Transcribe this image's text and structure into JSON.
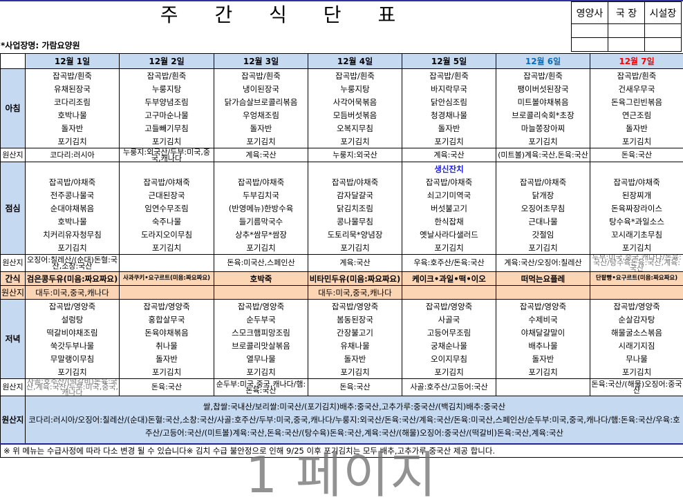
{
  "title": "주 간 식 단 표",
  "approval": {
    "headers": [
      "영양사",
      "국 장",
      "시설장"
    ]
  },
  "business_name": "*사업장명: 가람요양원",
  "labels": {
    "breakfast": "아침",
    "lunch": "점심",
    "snack": "간식",
    "dinner": "저녁",
    "origin": "원산지",
    "all_origin": "원산지"
  },
  "colors": {
    "header_bg": "#c5d9f1",
    "snack_bg": "#fcd5b4",
    "saturday": "#0070c0",
    "sunday": "#ff0000",
    "special": "#1a1aff"
  },
  "days": [
    {
      "date": "12월 1일",
      "color": "#000000",
      "breakfast": [
        "잡곡밥/흰죽",
        "유채된장국",
        "코다리조림",
        "호박나물",
        "돌자반",
        "포기김치"
      ],
      "breakfast_origin": "코다리:러시아",
      "lunch_special": "",
      "lunch": [
        "잡곡밥/야채죽",
        "전주콩나물국",
        "순대야채볶음",
        "호박나물",
        "치커리유자청무침",
        "포기김치"
      ],
      "lunch_origin": "오징어:칠레산/(순대)돈혈:국산,소창:국산",
      "snack": "검은콩두유(미음:짜요짜요)",
      "snack_origin": "대두:미국,중국,캐나다",
      "dinner": [
        "잡곡밥/영양죽",
        "설렁탕",
        "떡갈비야채조림",
        "쑥갓두부나물",
        "무말랭이무침",
        "포기김치"
      ],
      "dinner_origin": "사골:호주산/(떡갈비)돈육:국산,계육:국산/두부:미국,중국,캐나다"
    },
    {
      "date": "12월 2일",
      "color": "#000000",
      "breakfast": [
        "잡곡밥/흰죽",
        "누룽지탕",
        "두부양념조림",
        "고구마순나물",
        "고들빼기무침",
        "포기김치"
      ],
      "breakfast_origin": "누룽지:외국산/두부:미국,중국,캐나다",
      "lunch_special": "",
      "lunch": [
        "잡곡밥/야채죽",
        "근대된장국",
        "임연수무조림",
        "숙주나물",
        "도라지오이무침",
        "포기김치"
      ],
      "lunch_origin": "",
      "snack": "사과쿠키•요구르트(미음:짜요짜요)",
      "snack_origin": "",
      "dinner": [
        "잡곡밥/영양죽",
        "홍합살무국",
        "돈육야채볶음",
        "취나물",
        "돌자반",
        "포기김치"
      ],
      "dinner_origin": "돈육:국산"
    },
    {
      "date": "12월 3일",
      "color": "#000000",
      "breakfast": [
        "잡곡밥/흰죽",
        "냉이된장국",
        "닭가슴살브로콜리볶음",
        "우엉채조림",
        "돌자반",
        "포기김치"
      ],
      "breakfast_origin": "계육:국산",
      "lunch_special": "",
      "lunch": [
        "잡곡밥/야채죽",
        "두부김치국",
        "(반영메뉴)한방수육",
        "들기름막국수",
        "상추*쌈무*쌈장",
        "포기김치"
      ],
      "lunch_origin": "돈육:미국산,스페인산",
      "snack": "호박죽",
      "snack_origin": "",
      "dinner": [
        "잡곡밥/영양죽",
        "순두부국",
        "스모크햄피망조림",
        "브로콜리맛살볶음",
        "열무나물",
        "포기김치"
      ],
      "dinner_origin": "순두부:미국,중국,캐나다/햄:돈육:국산"
    },
    {
      "date": "12월 4일",
      "color": "#000000",
      "breakfast": [
        "잡곡밥/흰죽",
        "누룽지탕",
        "사각어묵볶음",
        "모듬버섯볶음",
        "오복지무침",
        "포기김치"
      ],
      "breakfast_origin": "누룽지:외국산",
      "lunch_special": "",
      "lunch": [
        "잡곡밥/야채죽",
        "감자달걀국",
        "닭김치조림",
        "콩나물무침",
        "도토리묵*양념장",
        "포기김치"
      ],
      "lunch_origin": "계육:국산",
      "snack": "비타민두유(미음:짜요짜요)",
      "snack_origin": "대두:미국,중국,캐나다",
      "dinner": [
        "잡곡밥/영양죽",
        "봄동된장국",
        "간장불고기",
        "유채나물",
        "돌자반",
        "포기김치"
      ],
      "dinner_origin": "돈육:국산"
    },
    {
      "date": "12월 5일",
      "color": "#000000",
      "breakfast": [
        "잡곡밥/흰죽",
        "바지락무국",
        "닭안심조림",
        "청경채나물",
        "돌자반",
        "포기김치"
      ],
      "breakfast_origin": "계육:국산",
      "lunch_special": "생신잔치",
      "lunch": [
        "잡곡밥/야채죽",
        "쇠고기미역국",
        "버섯불고기",
        "한식잡채",
        "옛날사라다샐러드",
        "포기김치"
      ],
      "lunch_origin": "우육:호주산/돈육:국산",
      "snack": "케이크•과일•떡•이오",
      "snack_origin": "",
      "dinner": [
        "잡곡밥/영양죽",
        "사골국",
        "고등어무조림",
        "궁채순나물",
        "오이지무침",
        "포기김치"
      ],
      "dinner_origin": "사골:호주산/고등어:국산"
    },
    {
      "date": "12월 6일",
      "color": "#0070c0",
      "breakfast": [
        "잡곡밥/흰죽",
        "팽이버섯된장국",
        "미트볼야채볶음",
        "브로콜리숙회*초장",
        "마늘쫑장아찌",
        "포기김치"
      ],
      "breakfast_origin": "(미트볼)계육:국산,돈육:국산",
      "lunch_special": "",
      "lunch": [
        "잡곡밥/야채죽",
        "닭개장",
        "오징어초무침",
        "근대나물",
        "갓절임",
        "포기김치"
      ],
      "lunch_origin": "계육:국산/오징어:칠레산",
      "snack": "떠먹는요플레",
      "snack_origin": "",
      "dinner": [
        "잡곡밥/영양죽",
        "수제비국",
        "야채달걀말이",
        "배추나물",
        "돌자반",
        "포기김치"
      ],
      "dinner_origin": ""
    },
    {
      "date": "12월 7일",
      "color": "#ff0000",
      "breakfast": [
        "잡곡밥/흰죽",
        "건새우무국",
        "돈육그린빈볶음",
        "연근조림",
        "돌자반",
        "포기김치"
      ],
      "breakfast_origin": "돈육:국산",
      "lunch_special": "",
      "lunch": [
        "잡곡밥/야채죽",
        "된장찌개",
        "돈육짜장라이스",
        "탕수육*과일소스",
        "꼬시래기초무침",
        "포기김치"
      ],
      "lunch_origin": "두부:미국,중국,캐나다/돈육:국산/탕수육돈육:국산,계육:국산",
      "snack": "단팥빵•요구르트(미음:짜요짜요)",
      "snack_origin": "",
      "dinner": [
        "잡곡밥/영양죽",
        "순살감자탕",
        "해물굴소스볶음",
        "시래기지짐",
        "무나물",
        "포기김치"
      ],
      "dinner_origin": "돈육:국산/(해물)오징어:중국산"
    }
  ],
  "all_origin_lines": [
    "쌀,찹쌀:국내산/보리쌀:미국산/(포기김치)배추:중국산,고추가루:중국산/(백김치)배추:중국산",
    "코다리:러시아/오징어:칠레산/(순대)돈혈:국산,소창:국산/사골:호주산/두부:미국,중국,캐나다/누룽지:외국산/돈육:국산/계육:국산/돈육:미국산,스페인산/순두부:미국,중국,캐나다/햄:돈육:국산/우육:호주산/고등어:국산/(미트볼)계육:국산,돈육:국산/(탕수육)돈육:국산,계육:국산/(해물)오징어:중국산/(떡갈비)돈육:국산,계육:국산"
  ],
  "note": "※ 위 메뉴는 수급사정에 따라 다소 변경 될 수 있습니다※  김치 수급 불안정으로 인해 9/25 이후 포기김치는 모두 배추,고추가루 중국산 제공 합니다.",
  "watermark": "1 페이지"
}
